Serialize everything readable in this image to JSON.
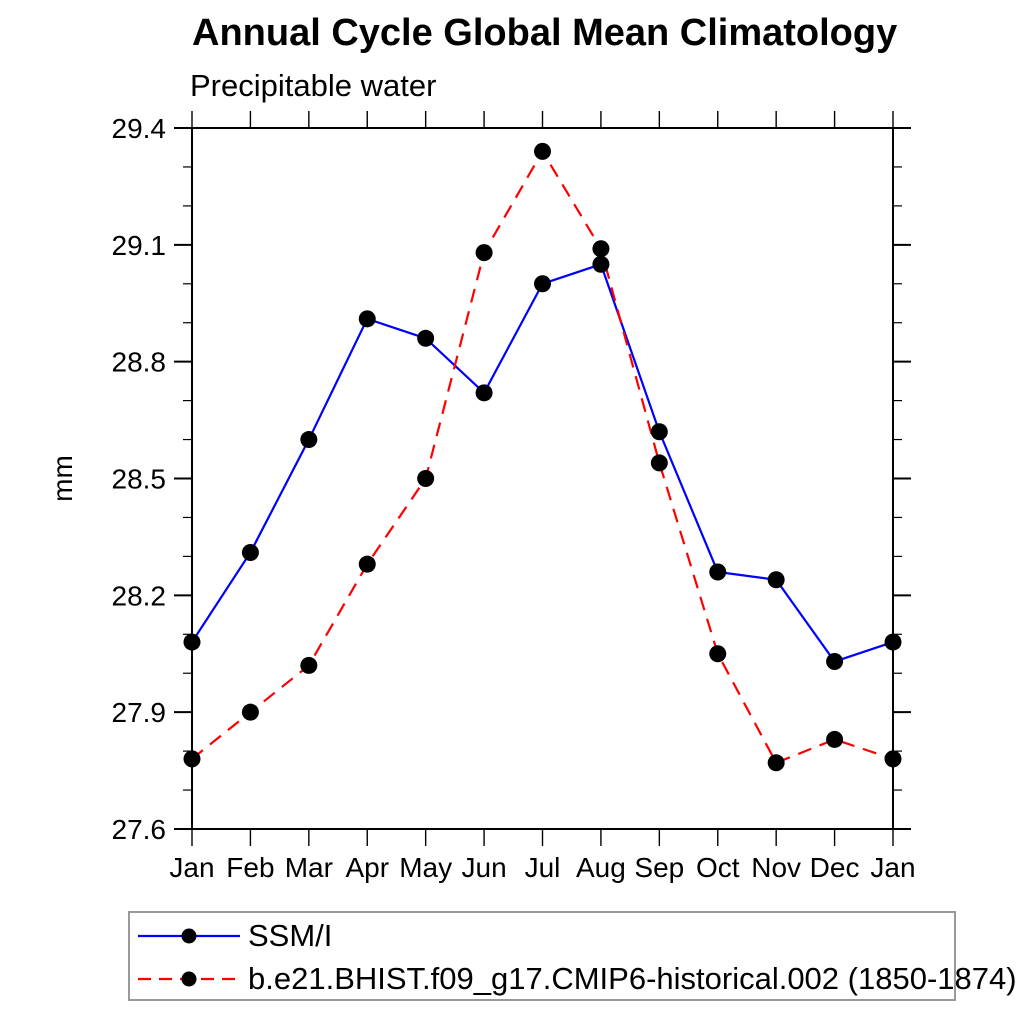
{
  "title": "Annual Cycle Global Mean Climatology",
  "subtitle": "Precipitable water",
  "y_axis_label": "mm",
  "chart_data": {
    "type": "line",
    "x_categories": [
      "Jan",
      "Feb",
      "Mar",
      "Apr",
      "May",
      "Jun",
      "Jul",
      "Aug",
      "Sep",
      "Oct",
      "Nov",
      "Dec",
      "Jan"
    ],
    "ylim": [
      27.6,
      29.4
    ],
    "ytick_labels": [
      "27.6",
      "27.9",
      "28.2",
      "28.5",
      "28.8",
      "29.1",
      "29.4"
    ],
    "ytick_major_step": 0.3,
    "ytick_minor_step": 0.1,
    "grid": false,
    "legend_position": "bottom-left box",
    "series": [
      {
        "name": "SSM/I",
        "color": "#0000ff",
        "line_style": "solid",
        "marker": "filled-circle",
        "marker_color": "#000000",
        "values": [
          28.08,
          28.31,
          28.6,
          28.91,
          28.86,
          28.72,
          29.0,
          29.05,
          28.62,
          28.26,
          28.24,
          28.03,
          28.08
        ]
      },
      {
        "name": "b.e21.BHIST.f09_g17.CMIP6-historical.002 (1850-1874)",
        "color": "#ff0000",
        "line_style": "dashed",
        "marker": "filled-circle",
        "marker_color": "#000000",
        "values": [
          27.78,
          27.9,
          28.02,
          28.28,
          28.5,
          29.08,
          29.34,
          29.09,
          28.54,
          28.05,
          27.77,
          27.83,
          27.78
        ]
      }
    ]
  }
}
